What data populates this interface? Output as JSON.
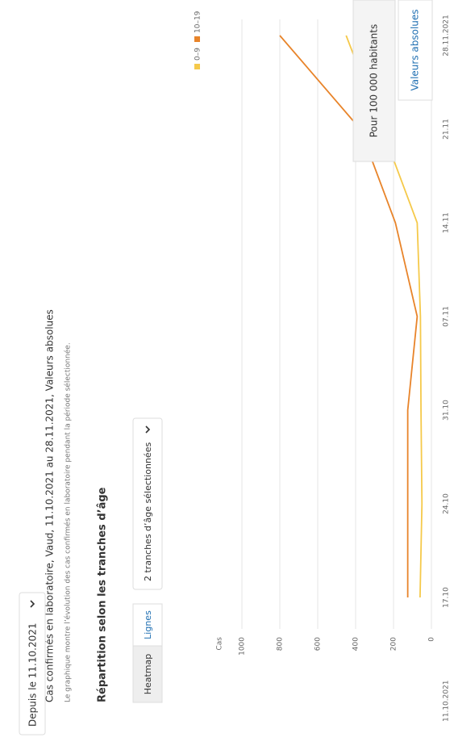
{
  "filters": {
    "period": "Depuis le 11.10.2021",
    "units": [
      "Pour 100 000 habitants",
      "Valeurs absolues"
    ]
  },
  "section_title": "Répartition selon les tranches d’âge",
  "views": [
    "Heatmap",
    "Lignes"
  ],
  "age_selector": "2 tranches d’âge sélectionnées",
  "chart_data": {
    "type": "line",
    "title": "Cas confirmés en laboratoire, Vaud, 11.10.2021 au 28.11.2021, Valeurs absolues",
    "subtitle": "Le graphique montre l’évolution des cas confirmés en laboratoire pendant la période sélectionnée.",
    "y_label": "Cas",
    "x_start": "11.10.2021",
    "categories": [
      "17.10",
      "24.10",
      "31.10",
      "07.11",
      "14.11",
      "21.11",
      "28.11.2021"
    ],
    "series": [
      {
        "name": "0–9",
        "color": "#f5c94a",
        "values": [
          60,
          50,
          55,
          58,
          75,
          260,
          450
        ]
      },
      {
        "name": "10–19",
        "color": "#e8842a",
        "values": [
          125,
          125,
          125,
          75,
          190,
          375,
          800
        ]
      }
    ],
    "ylim": [
      0,
      1000
    ],
    "yticks": [
      0,
      200,
      400,
      600,
      800,
      1000
    ],
    "grid": true
  }
}
